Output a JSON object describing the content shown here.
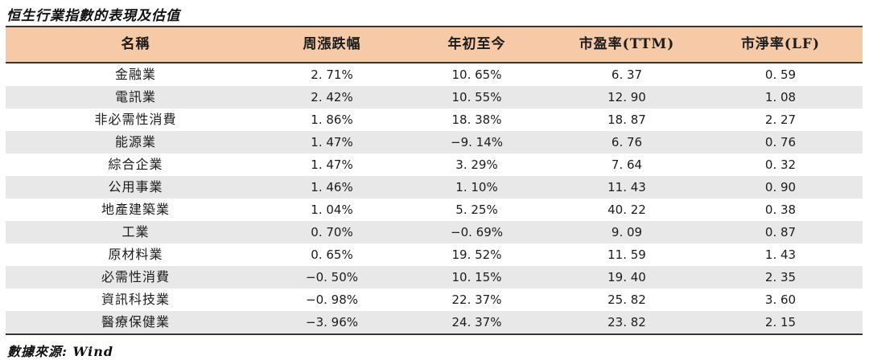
{
  "title": "恒生行業指數的表現及估值",
  "footer": "數據來源: Wind",
  "colors": {
    "header_bg": "#F6C9A7",
    "stripe_bg": "#E8E8E8",
    "rule": "#3B352F"
  },
  "table": {
    "columns": [
      "名稱",
      "周漲跌幅",
      "年初至今",
      "市盈率(TTM)",
      "市淨率(LF)"
    ],
    "rows": [
      [
        "金融業",
        "2. 71%",
        "10. 65%",
        "6. 37",
        "0. 59"
      ],
      [
        "電訊業",
        "2. 42%",
        "10. 55%",
        "12. 90",
        "1. 08"
      ],
      [
        "非必需性消費",
        "1. 86%",
        "18. 38%",
        "18. 87",
        "2. 27"
      ],
      [
        "能源業",
        "1. 47%",
        "−9. 14%",
        "6. 76",
        "0. 76"
      ],
      [
        "綜合企業",
        "1. 47%",
        "3. 29%",
        "7. 64",
        "0. 32"
      ],
      [
        "公用事業",
        "1. 46%",
        "1. 10%",
        "11. 43",
        "0. 90"
      ],
      [
        "地產建築業",
        "1. 04%",
        "5. 25%",
        "40. 22",
        "0. 38"
      ],
      [
        "工業",
        "0. 70%",
        "−0. 69%",
        "9. 09",
        "0. 87"
      ],
      [
        "原材料業",
        "0. 65%",
        "19. 52%",
        "11. 59",
        "1. 43"
      ],
      [
        "必需性消費",
        "−0. 50%",
        "10. 15%",
        "19. 40",
        "2. 35"
      ],
      [
        "資訊科技業",
        "−0. 98%",
        "22. 37%",
        "25. 82",
        "3. 60"
      ],
      [
        "醫療保健業",
        "−3. 96%",
        "24. 37%",
        "23. 82",
        "2. 15"
      ]
    ]
  }
}
